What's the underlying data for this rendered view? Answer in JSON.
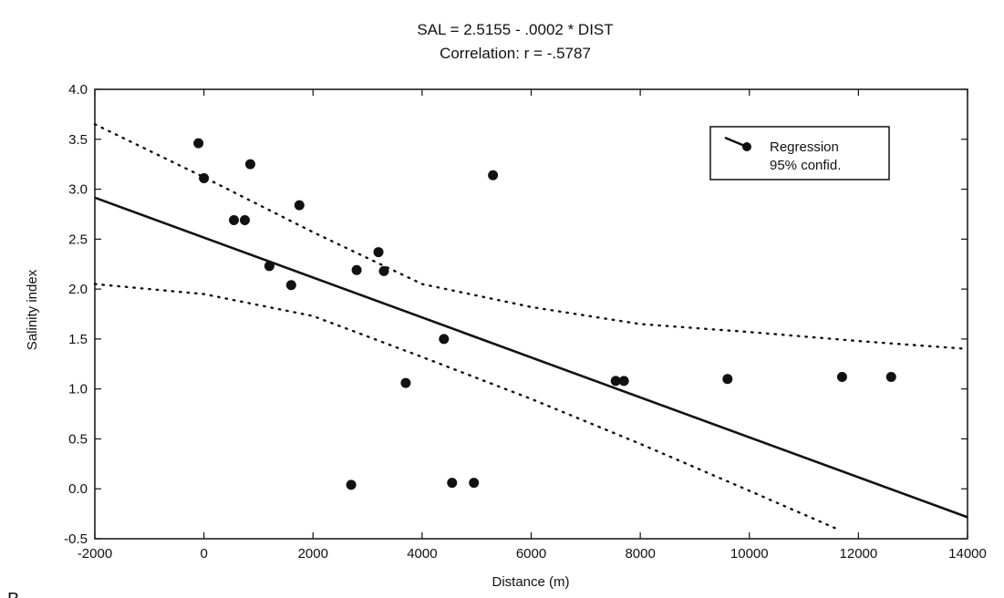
{
  "chart_data": {
    "type": "scatter",
    "title": "SAL = 2.5155 - .0002 * DIST",
    "subtitle": "Correlation: r = -.5787",
    "xlabel": "Distance (m)",
    "ylabel": "Salinity index",
    "xlim": [
      -2000,
      14000
    ],
    "ylim": [
      -0.5,
      4.0
    ],
    "xticks": [
      -2000,
      0,
      2000,
      4000,
      6000,
      8000,
      10000,
      12000,
      14000
    ],
    "yticks": [
      -0.5,
      0.0,
      0.5,
      1.0,
      1.5,
      2.0,
      2.5,
      3.0,
      3.5,
      4.0
    ],
    "xtick_labels": [
      "-2000",
      "0",
      "2000",
      "4000",
      "6000",
      "8000",
      "10000",
      "12000",
      "14000"
    ],
    "ytick_labels": [
      "-0.5",
      "0.0",
      "0.5",
      "1.0",
      "1.5",
      "2.0",
      "2.5",
      "3.0",
      "3.5",
      "4.0"
    ],
    "grid": false,
    "legend": {
      "placement": "top-right",
      "entries": [
        "Regression",
        "95% confid."
      ]
    },
    "points": [
      {
        "x": -100,
        "y": 3.46
      },
      {
        "x": 0,
        "y": 3.11
      },
      {
        "x": 550,
        "y": 2.69
      },
      {
        "x": 750,
        "y": 2.69
      },
      {
        "x": 850,
        "y": 3.25
      },
      {
        "x": 1200,
        "y": 2.23
      },
      {
        "x": 1600,
        "y": 2.04
      },
      {
        "x": 1750,
        "y": 2.84
      },
      {
        "x": 2700,
        "y": 0.04
      },
      {
        "x": 2800,
        "y": 2.19
      },
      {
        "x": 3200,
        "y": 2.37
      },
      {
        "x": 3300,
        "y": 2.18
      },
      {
        "x": 3700,
        "y": 1.06
      },
      {
        "x": 4400,
        "y": 1.5
      },
      {
        "x": 4550,
        "y": 0.06
      },
      {
        "x": 4950,
        "y": 0.06
      },
      {
        "x": 5300,
        "y": 3.14
      },
      {
        "x": 7550,
        "y": 1.08
      },
      {
        "x": 7700,
        "y": 1.08
      },
      {
        "x": 9600,
        "y": 1.1
      },
      {
        "x": 11700,
        "y": 1.12
      },
      {
        "x": 12600,
        "y": 1.12
      }
    ],
    "regression": {
      "intercept": 2.5155,
      "slope": -0.0002,
      "x": [
        -2000,
        14000
      ]
    },
    "confidence_upper": {
      "x": [
        -2000,
        0,
        2000,
        4000,
        6000,
        8000,
        10000,
        12000,
        14000
      ],
      "y": [
        3.65,
        3.12,
        2.57,
        2.05,
        1.82,
        1.65,
        1.57,
        1.48,
        1.4
      ]
    },
    "confidence_lower": {
      "x": [
        -2000,
        0,
        2000,
        4000,
        6000,
        8000,
        10000,
        11600
      ],
      "y": [
        2.05,
        1.95,
        1.73,
        1.32,
        0.9,
        0.45,
        -0.02,
        -0.4
      ]
    },
    "panel_label": "B"
  },
  "colors": {
    "ink": "#111111",
    "background": "#ffffff"
  }
}
